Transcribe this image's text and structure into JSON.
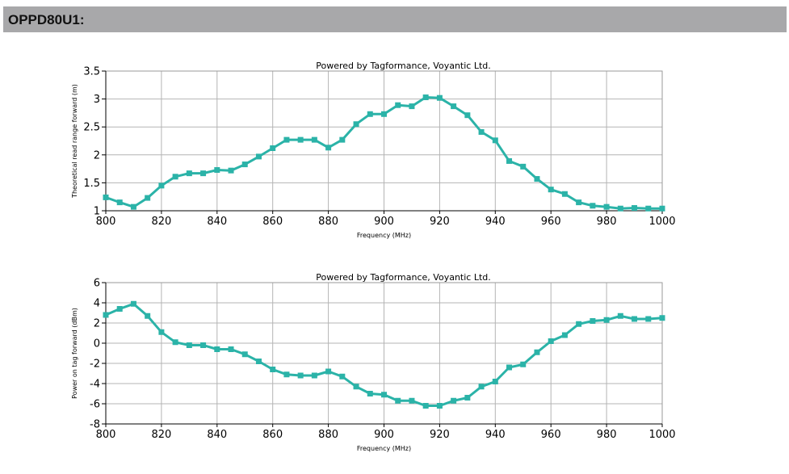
{
  "header": {
    "title": "OPPD80U1:"
  },
  "chart_data": [
    {
      "type": "line",
      "watermark": "Powered by Tagformance, Voyantic Ltd.",
      "xlabel": "Frequency (MHz)",
      "ylabel": "Theoretical read range forward (m)",
      "xlim": [
        800,
        1000
      ],
      "ylim": [
        1,
        3.5
      ],
      "xticks": [
        "800",
        "820",
        "840",
        "860",
        "880",
        "900",
        "920",
        "940",
        "960",
        "980",
        "1000"
      ],
      "yticks": [
        "1",
        "1.5",
        "2",
        "2.5",
        "3",
        "3.5"
      ],
      "grid": true,
      "color": "#2bb3a8",
      "x": [
        800,
        805,
        810,
        815,
        820,
        825,
        830,
        835,
        840,
        845,
        850,
        855,
        860,
        865,
        870,
        875,
        880,
        885,
        890,
        895,
        900,
        905,
        910,
        915,
        920,
        925,
        930,
        935,
        940,
        945,
        950,
        955,
        960,
        965,
        970,
        975,
        980,
        985,
        990,
        995,
        1000
      ],
      "y": [
        1.24,
        1.15,
        1.07,
        1.23,
        1.45,
        1.61,
        1.67,
        1.67,
        1.73,
        1.72,
        1.83,
        1.97,
        2.12,
        2.27,
        2.27,
        2.27,
        2.13,
        2.27,
        2.55,
        2.73,
        2.73,
        2.89,
        2.87,
        3.03,
        3.02,
        2.87,
        2.71,
        2.41,
        2.26,
        1.89,
        1.79,
        1.57,
        1.38,
        1.3,
        1.15,
        1.09,
        1.07,
        1.04,
        1.05,
        1.04,
        1.04
      ]
    },
    {
      "type": "line",
      "watermark": "Powered by Tagformance, Voyantic Ltd.",
      "xlabel": "Frequency (MHz)",
      "ylabel": "Power on tag forward (dBm)",
      "xlim": [
        800,
        1000
      ],
      "ylim": [
        -8,
        6
      ],
      "xticks": [
        "800",
        "820",
        "840",
        "860",
        "880",
        "900",
        "920",
        "940",
        "960",
        "980",
        "1000"
      ],
      "yticks": [
        "-8",
        "-6",
        "-4",
        "-2",
        "0",
        "2",
        "4",
        "6"
      ],
      "grid": true,
      "color": "#2bb3a8",
      "x": [
        800,
        805,
        810,
        815,
        820,
        825,
        830,
        835,
        840,
        845,
        850,
        855,
        860,
        865,
        870,
        875,
        880,
        885,
        890,
        895,
        900,
        905,
        910,
        915,
        920,
        925,
        930,
        935,
        940,
        945,
        950,
        955,
        960,
        965,
        970,
        975,
        980,
        985,
        990,
        995,
        1000
      ],
      "y": [
        2.8,
        3.4,
        3.9,
        2.7,
        1.1,
        0.1,
        -0.2,
        -0.2,
        -0.6,
        -0.6,
        -1.1,
        -1.8,
        -2.6,
        -3.1,
        -3.2,
        -3.2,
        -2.8,
        -3.3,
        -4.3,
        -5.0,
        -5.1,
        -5.7,
        -5.7,
        -6.2,
        -6.2,
        -5.7,
        -5.4,
        -4.3,
        -3.8,
        -2.4,
        -2.1,
        -0.9,
        0.2,
        0.8,
        1.9,
        2.2,
        2.3,
        2.7,
        2.4,
        2.4,
        2.5
      ]
    }
  ]
}
